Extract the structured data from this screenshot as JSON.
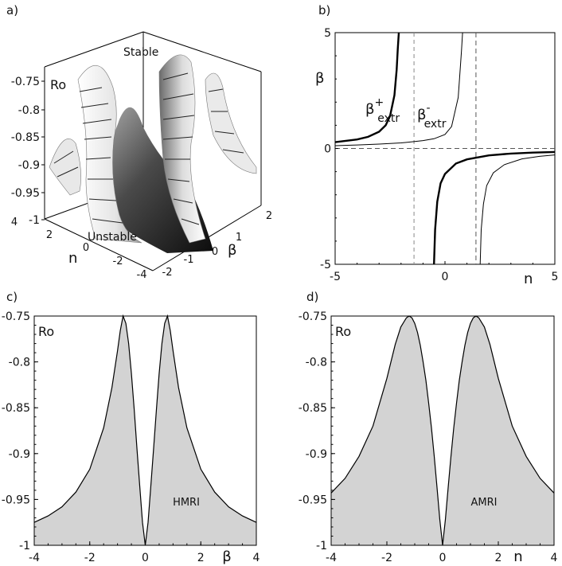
{
  "panels": {
    "a": {
      "label": "a)"
    },
    "b": {
      "label": "b)"
    },
    "c": {
      "label": "c)"
    },
    "d": {
      "label": "d)"
    }
  },
  "chart_data": [
    {
      "panel": "a",
      "type": "surface3d",
      "title": "",
      "zlabel": "Ro",
      "xlabel": "n",
      "ylabel": "β",
      "x_ticks": [
        "4",
        "2",
        "0",
        "-2",
        "-4"
      ],
      "y_ticks": [
        "2",
        "1",
        "0",
        "-1",
        "-2"
      ],
      "z_ticks": [
        "-0.75",
        "-0.8",
        "-0.85",
        "-0.9",
        "-0.95",
        "-1"
      ],
      "annotations": [
        "Stable",
        "Unstable"
      ],
      "zlim": [
        -1,
        -0.75
      ],
      "xlim": [
        -4,
        4
      ],
      "ylim": [
        -2,
        2
      ]
    },
    {
      "panel": "b",
      "type": "line",
      "xlabel": "n",
      "ylabel": "β",
      "xlim": [
        -5,
        5
      ],
      "ylim": [
        -5,
        5
      ],
      "x_ticks": [
        "-5",
        "0",
        "5"
      ],
      "y_ticks": [
        "5",
        "0",
        "-5"
      ],
      "series": [
        {
          "name": "β+extr",
          "label_main": "β",
          "label_sup": "+",
          "label_sub": "extr",
          "style": "thick",
          "branches": [
            {
              "x": [
                -5,
                -4,
                -3.5,
                -3,
                -2.7,
                -2.5,
                -2.3,
                -2.2,
                -2.15,
                -2.1
              ],
              "y": [
                0.27,
                0.39,
                0.5,
                0.72,
                1.0,
                1.4,
                2.3,
                3.4,
                4.3,
                5
              ]
            },
            {
              "x": [
                -0.5,
                -0.45,
                -0.35,
                -0.2,
                0,
                0.5,
                1,
                2,
                3,
                4,
                5
              ],
              "y": [
                -5,
                -3.5,
                -2.3,
                -1.5,
                -1.1,
                -0.65,
                -0.47,
                -0.3,
                -0.22,
                -0.18,
                -0.15
              ]
            }
          ]
        },
        {
          "name": "β-extr",
          "label_main": "β",
          "label_sup": "-",
          "label_sub": "extr",
          "style": "thin",
          "branches": [
            {
              "x": [
                -5,
                -4,
                -3,
                -2,
                -1.5,
                -1,
                -0.5,
                0,
                0.3,
                0.6,
                0.75,
                0.8
              ],
              "y": [
                0.12,
                0.15,
                0.19,
                0.24,
                0.29,
                0.34,
                0.42,
                0.6,
                0.95,
                2.2,
                4.2,
                5
              ]
            },
            {
              "x": [
                1.6,
                1.65,
                1.75,
                1.9,
                2.2,
                2.7,
                3.5,
                4.3,
                5
              ],
              "y": [
                -5,
                -3.5,
                -2.4,
                -1.6,
                -1.05,
                -0.7,
                -0.45,
                -0.34,
                -0.28
              ]
            }
          ]
        }
      ],
      "asymptotes": [
        {
          "type": "h",
          "value": 0,
          "style": "dashed"
        },
        {
          "type": "v",
          "value": -1.41,
          "style": "dashed-thin"
        },
        {
          "type": "v",
          "value": 1.41,
          "style": "dashed"
        }
      ]
    },
    {
      "panel": "c",
      "type": "area",
      "xlabel": "β",
      "ylabel": "Ro",
      "xlim": [
        -4,
        4
      ],
      "ylim": [
        -1,
        -0.75
      ],
      "x_ticks": [
        "-4",
        "-2",
        "0",
        "2",
        "4"
      ],
      "y_ticks": [
        "-0.75",
        "-0.8",
        "-0.85",
        "-0.9",
        "-0.95",
        "-1"
      ],
      "annotation": "HMRI",
      "fill": "#d3d3d3",
      "x": [
        -4,
        -3.5,
        -3,
        -2.5,
        -2,
        -1.5,
        -1.2,
        -1,
        -0.9,
        -0.8,
        -0.7,
        -0.6,
        -0.5,
        -0.4,
        -0.3,
        -0.2,
        -0.1,
        0,
        0.1,
        0.2,
        0.3,
        0.4,
        0.5,
        0.6,
        0.7,
        0.8,
        0.9,
        1,
        1.2,
        1.5,
        2,
        2.5,
        3,
        3.5,
        4
      ],
      "y": [
        -0.975,
        -0.968,
        -0.958,
        -0.942,
        -0.917,
        -0.872,
        -0.828,
        -0.788,
        -0.766,
        -0.75,
        -0.758,
        -0.78,
        -0.813,
        -0.852,
        -0.894,
        -0.935,
        -0.975,
        -1,
        -0.975,
        -0.935,
        -0.894,
        -0.852,
        -0.813,
        -0.78,
        -0.758,
        -0.75,
        -0.766,
        -0.788,
        -0.828,
        -0.872,
        -0.917,
        -0.942,
        -0.958,
        -0.968,
        -0.975
      ]
    },
    {
      "panel": "d",
      "type": "area",
      "xlabel": "n",
      "ylabel": "Ro",
      "xlim": [
        -4,
        4
      ],
      "ylim": [
        -1,
        -0.75
      ],
      "x_ticks": [
        "-4",
        "-2",
        "0",
        "2",
        "4"
      ],
      "y_ticks": [
        "-0.75",
        "-0.8",
        "-0.85",
        "-0.9",
        "-0.95",
        "-1"
      ],
      "annotation": "AMRI",
      "fill": "#d3d3d3",
      "x": [
        -4,
        -3.5,
        -3,
        -2.5,
        -2,
        -1.7,
        -1.5,
        -1.3,
        -1.2,
        -1.1,
        -1,
        -0.9,
        -0.8,
        -0.7,
        -0.6,
        -0.5,
        -0.4,
        -0.3,
        -0.2,
        -0.1,
        0,
        0.1,
        0.2,
        0.3,
        0.4,
        0.5,
        0.6,
        0.7,
        0.8,
        0.9,
        1,
        1.1,
        1.2,
        1.3,
        1.5,
        1.7,
        2,
        2.5,
        3,
        3.5,
        4
      ],
      "y": [
        -0.943,
        -0.927,
        -0.903,
        -0.87,
        -0.818,
        -0.781,
        -0.762,
        -0.752,
        -0.75,
        -0.752,
        -0.758,
        -0.768,
        -0.782,
        -0.8,
        -0.82,
        -0.845,
        -0.872,
        -0.903,
        -0.937,
        -0.972,
        -1,
        -0.972,
        -0.937,
        -0.903,
        -0.872,
        -0.845,
        -0.82,
        -0.8,
        -0.782,
        -0.768,
        -0.758,
        -0.752,
        -0.75,
        -0.752,
        -0.762,
        -0.781,
        -0.818,
        -0.87,
        -0.903,
        -0.927,
        -0.943
      ]
    }
  ]
}
